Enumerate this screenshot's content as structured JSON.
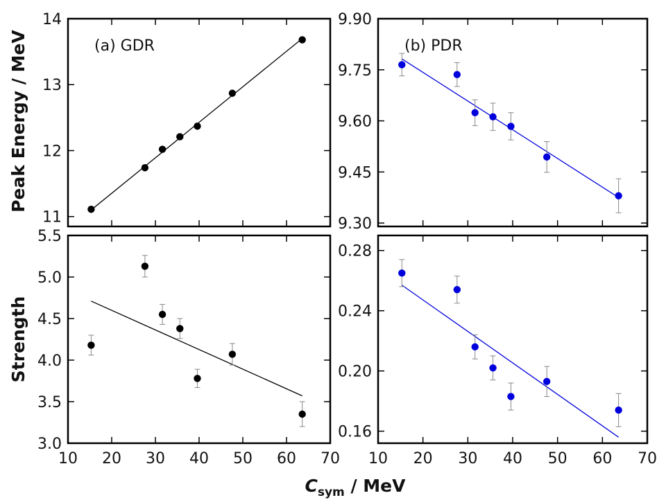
{
  "figure": {
    "ylabel_top": "Peak Energy / MeV",
    "ylabel_bottom": "Strength",
    "xlabel_main": "C",
    "xlabel_sub": "sym",
    "xlabel_rest": " / MeV",
    "colors": {
      "black_series": "#000000",
      "blue_series": "#0000dd",
      "axis": "#000000",
      "errorbar": "#888888"
    }
  },
  "chart_data": [
    {
      "id": "a",
      "type": "scatter",
      "panel_label": "(a) GDR",
      "color": "#000000",
      "x": [
        15.3,
        27.6,
        31.6,
        35.6,
        39.6,
        47.6,
        63.6
      ],
      "y": [
        11.11,
        11.74,
        12.02,
        12.21,
        12.37,
        12.87,
        13.68
      ],
      "yerr": [
        0,
        0,
        0,
        0,
        0,
        0,
        0
      ],
      "fit_line": {
        "x": [
          15.3,
          63.6
        ],
        "y": [
          11.1,
          13.7
        ]
      },
      "xlim": [
        10,
        70
      ],
      "ylim": [
        10.85,
        14.0
      ],
      "xticks": [
        10,
        20,
        30,
        40,
        50,
        60,
        70
      ],
      "yticks": [
        11,
        12,
        13,
        14
      ],
      "ytick_labels": [
        "11",
        "12",
        "13",
        "14"
      ],
      "xlabel": "C_sym / MeV",
      "ylabel": "Peak Energy / MeV"
    },
    {
      "id": "b",
      "type": "scatter",
      "panel_label": "(b) PDR",
      "color": "#0000dd",
      "x": [
        15.3,
        27.6,
        31.6,
        35.6,
        39.6,
        47.6,
        63.6
      ],
      "y": [
        9.765,
        9.736,
        9.624,
        9.612,
        9.584,
        9.494,
        9.38
      ],
      "yerr": [
        0.033,
        0.035,
        0.038,
        0.04,
        0.04,
        0.045,
        0.05
      ],
      "fit_line": {
        "x": [
          15.3,
          63.6
        ],
        "y": [
          9.782,
          9.375
        ]
      },
      "xlim": [
        10,
        70
      ],
      "ylim": [
        9.29,
        9.9
      ],
      "xticks": [
        10,
        20,
        30,
        40,
        50,
        60,
        70
      ],
      "yticks": [
        9.3,
        9.45,
        9.6,
        9.75,
        9.9
      ],
      "ytick_labels": [
        "9.30",
        "9.45",
        "9.60",
        "9.75",
        "9.90"
      ],
      "xlabel": "C_sym / MeV",
      "ylabel": "Peak Energy / MeV"
    },
    {
      "id": "c",
      "type": "scatter",
      "panel_label": "",
      "color": "#000000",
      "x": [
        15.3,
        27.6,
        31.6,
        35.6,
        39.6,
        47.6,
        63.6
      ],
      "y": [
        4.18,
        5.13,
        4.55,
        4.38,
        3.78,
        4.07,
        3.35
      ],
      "yerr": [
        0.12,
        0.13,
        0.12,
        0.12,
        0.11,
        0.13,
        0.15
      ],
      "fit_line": {
        "x": [
          15.3,
          63.6
        ],
        "y": [
          4.71,
          3.57
        ]
      },
      "xlim": [
        10,
        70
      ],
      "ylim": [
        3.0,
        5.5
      ],
      "xticks": [
        10,
        20,
        30,
        40,
        50,
        60,
        70
      ],
      "yticks": [
        3.0,
        3.5,
        4.0,
        4.5,
        5.0,
        5.5
      ],
      "ytick_labels": [
        "3.0",
        "3.5",
        "4.0",
        "4.5",
        "5.0",
        "5.5"
      ],
      "xlabel": "C_sym / MeV",
      "ylabel": "Strength"
    },
    {
      "id": "d",
      "type": "scatter",
      "panel_label": "",
      "color": "#0000dd",
      "x": [
        15.3,
        27.6,
        31.6,
        35.6,
        39.6,
        47.6,
        63.6
      ],
      "y": [
        0.265,
        0.254,
        0.216,
        0.202,
        0.183,
        0.193,
        0.174
      ],
      "yerr": [
        0.009,
        0.009,
        0.008,
        0.008,
        0.009,
        0.01,
        0.011
      ],
      "fit_line": {
        "x": [
          15.3,
          63.6
        ],
        "y": [
          0.257,
          0.156
        ]
      },
      "xlim": [
        10,
        70
      ],
      "ylim": [
        0.152,
        0.29
      ],
      "xticks": [
        10,
        20,
        30,
        40,
        50,
        60,
        70
      ],
      "yticks": [
        0.16,
        0.2,
        0.24,
        0.28
      ],
      "ytick_labels": [
        "0.16",
        "0.20",
        "0.24",
        "0.28"
      ],
      "xlabel": "C_sym / MeV",
      "ylabel": "Strength"
    }
  ]
}
